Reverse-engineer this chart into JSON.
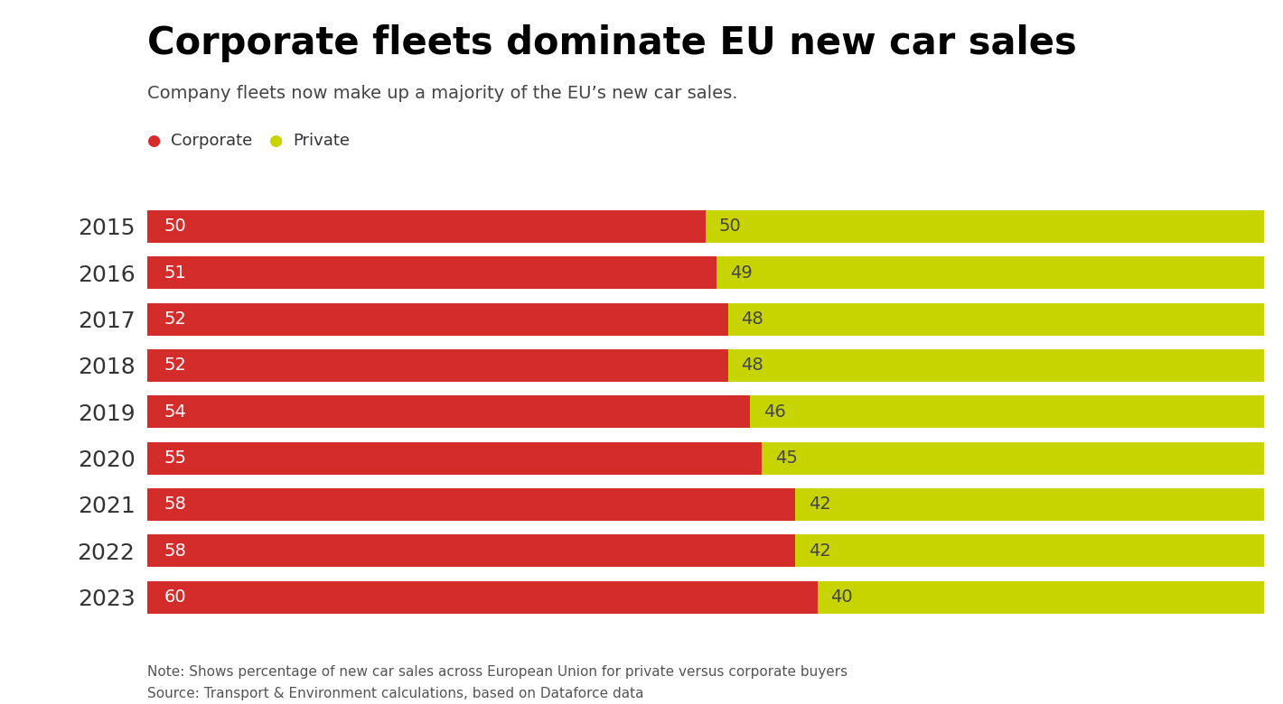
{
  "title": "Corporate fleets dominate EU new car sales",
  "subtitle": "Company fleets now make up a majority of the EU’s new car sales.",
  "years": [
    2015,
    2016,
    2017,
    2018,
    2019,
    2020,
    2021,
    2022,
    2023
  ],
  "corporate": [
    50,
    51,
    52,
    52,
    54,
    55,
    58,
    58,
    60
  ],
  "private": [
    50,
    49,
    48,
    48,
    46,
    45,
    42,
    42,
    40
  ],
  "corporate_color": "#D42B2B",
  "private_color": "#C8D400",
  "bar_height": 0.7,
  "note": "Note: Shows percentage of new car sales across European Union for private versus corporate buyers",
  "source": "Source: Transport & Environment calculations, based on Dataforce data",
  "legend_corporate": "Corporate",
  "legend_private": "Private",
  "title_fontsize": 30,
  "subtitle_fontsize": 14,
  "legend_fontsize": 13,
  "bar_label_fontsize": 14,
  "footer_fontsize": 11,
  "year_fontsize": 18,
  "background_color": "#ffffff"
}
